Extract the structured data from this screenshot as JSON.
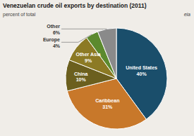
{
  "chart_data": {
    "type": "pie",
    "title": "Venezuelan crude oil exports by destination (2011)",
    "subtitle": "percent of total",
    "categories": [
      "United States",
      "Caribbean",
      "China",
      "Other Asia",
      "Europe",
      "Other"
    ],
    "values": [
      40,
      31,
      10,
      9,
      4,
      6
    ],
    "value_labels": [
      "40%",
      "31%",
      "10%",
      "9%",
      "4%",
      "6%"
    ],
    "colors": [
      "#1a4e6b",
      "#c8782a",
      "#6b5f1e",
      "#8c7a24",
      "#5c8a2e",
      "#8a8a8a"
    ],
    "data_labels": true,
    "annotations": [
      "eia"
    ]
  }
}
